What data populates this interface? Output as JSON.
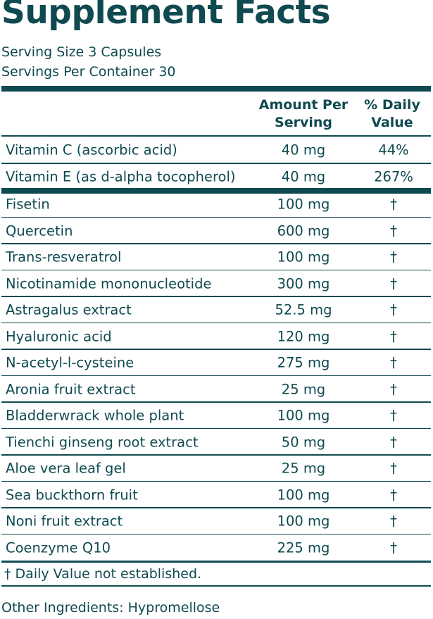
{
  "header": {
    "title": "Supplement Facts",
    "serving_size": "Serving Size 3 Capsules",
    "servings_per_container": "Servings Per Container 30"
  },
  "table": {
    "columns": [
      "Amount Per Serving",
      "% Daily Value"
    ],
    "rows": [
      [
        "Vitamin C (ascorbic acid)",
        "40 mg",
        "44%"
      ],
      [
        "Vitamin E (as d-alpha tocopherol)",
        "40 mg",
        "267%"
      ],
      [
        "Fisetin",
        "100 mg",
        "†"
      ],
      [
        "Quercetin",
        "600 mg",
        "†"
      ],
      [
        "Trans-resveratrol",
        "100 mg",
        "†"
      ],
      [
        "Nicotinamide mononucleotide",
        "300 mg",
        "†"
      ],
      [
        "Astragalus extract",
        "52.5 mg",
        "†"
      ],
      [
        "Hyaluronic acid",
        "120 mg",
        "†"
      ],
      [
        "N-acetyl-l-cysteine",
        "275 mg",
        "†"
      ],
      [
        "Aronia fruit extract",
        "25 mg",
        "†"
      ],
      [
        "Bladderwrack whole plant",
        "100 mg",
        "†"
      ],
      [
        "Tienchi ginseng root extract",
        "50 mg",
        "†"
      ],
      [
        "Aloe vera leaf gel",
        "25 mg",
        "†"
      ],
      [
        "Sea buckthorn fruit",
        "100 mg",
        "†"
      ],
      [
        "Noni fruit extract",
        "100 mg",
        "†"
      ],
      [
        "Coenzyme Q10",
        "225 mg",
        "†"
      ]
    ]
  },
  "footnote": "† Daily Value not established.",
  "other_ingredients": "Other Ingredients: Hypromellose"
}
